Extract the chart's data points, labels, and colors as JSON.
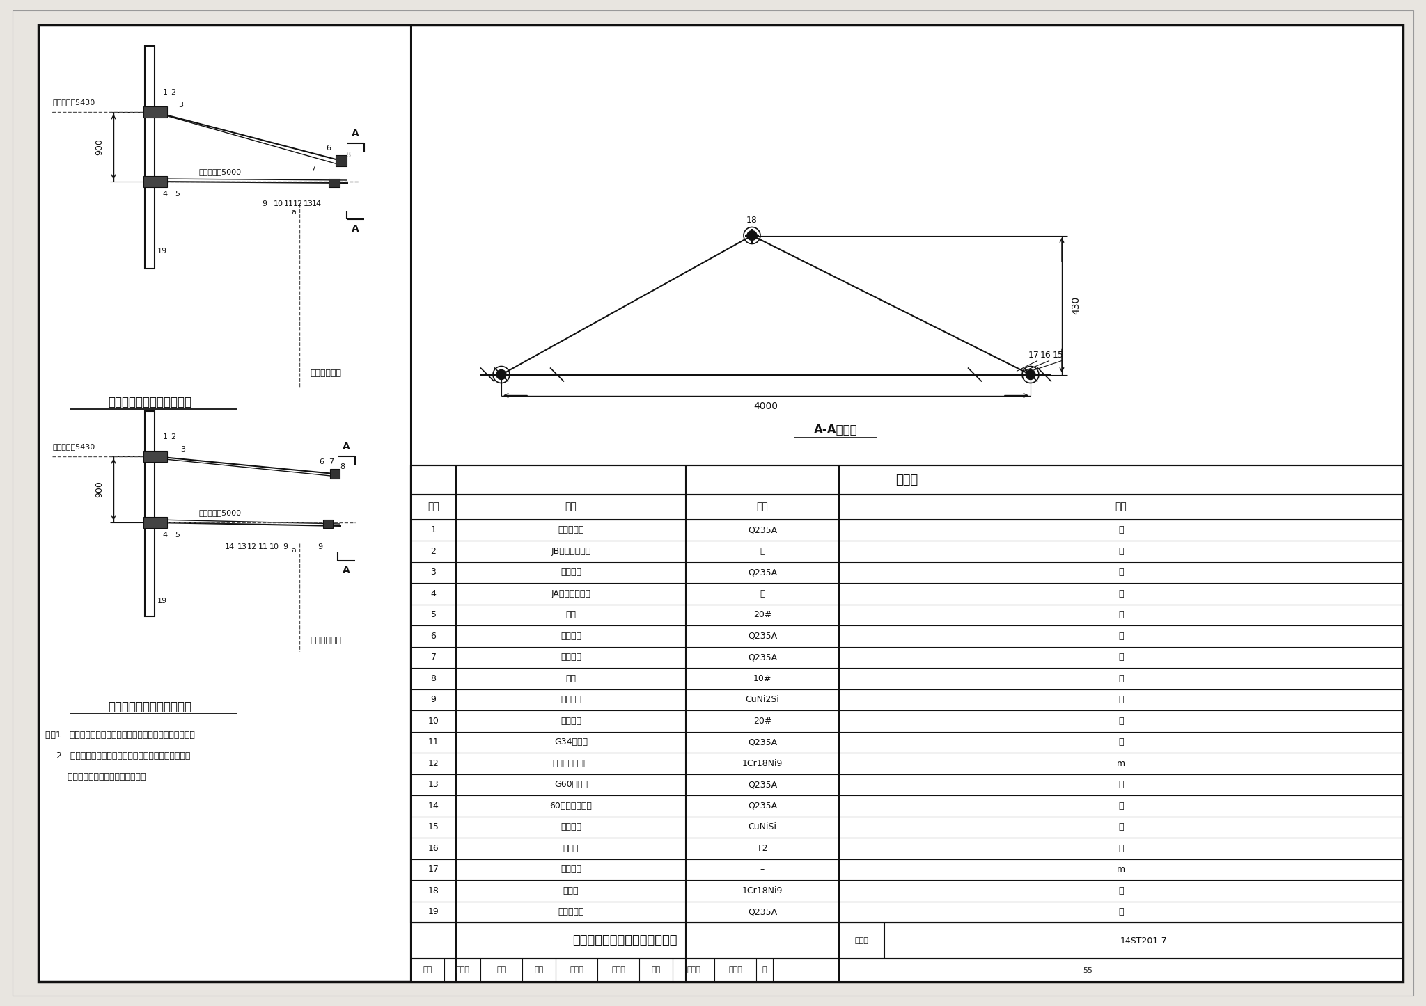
{
  "title": "简单悬挂安装图（中间柱曲线）",
  "drawing_number": "14ST201-7",
  "page": "55",
  "table_title": "材料表",
  "section_title": "A-A剖面图",
  "table_headers": [
    "序号",
    "名称",
    "材料",
    "单位"
  ],
  "table_data": [
    [
      "1",
      "腕臂上底座",
      "Q235A",
      "套"
    ],
    [
      "2",
      "JB型棒式绝缘子",
      "瓷",
      "套"
    ],
    [
      "3",
      "异径斜撑",
      "Q235A",
      "个"
    ],
    [
      "4",
      "JA型棒式绝缘子",
      "瓷",
      "个"
    ],
    [
      "5",
      "腕臂",
      "20#",
      "件"
    ],
    [
      "6",
      "套管双耳",
      "Q235A",
      "套"
    ],
    [
      "7",
      "定位双环",
      "Q235A",
      "套"
    ],
    [
      "8",
      "管帽",
      "10#",
      "件"
    ],
    [
      "9",
      "定位线夹",
      "CuNi2Si",
      "套"
    ],
    [
      "10",
      "软定位器",
      "20#",
      "件"
    ],
    [
      "11",
      "G34定位环",
      "Q235A",
      "套"
    ],
    [
      "12",
      "不锈钢软态钢丝",
      "1Cr18Ni9",
      "m"
    ],
    [
      "13",
      "G60定位环",
      "Q235A",
      "套"
    ],
    [
      "14",
      "60型长定位立柱",
      "Q235A",
      "套"
    ],
    [
      "15",
      "吊索线夹",
      "CuNiSi",
      "套"
    ],
    [
      "16",
      "钳压管",
      "T2",
      "套"
    ],
    [
      "17",
      "青铜绞线",
      "–",
      "m"
    ],
    [
      "18",
      "心形环",
      "1Cr18Ni9",
      "件"
    ],
    [
      "19",
      "腕臂上底座",
      "Q235A",
      "套"
    ]
  ],
  "notes": [
    "注：1.  腕臂施工中注意，绝缘子的安装方向应符合设计要求。",
    "    2.  本图适用于圆锥形钢柱上安装，安装形式及材料型号",
    "        仅供参考，具体以施工图纸为准。"
  ],
  "label1": "简单悬挂曲内安装正立面图",
  "label2": "简单悬挂曲外安装正立面图",
  "dim_900": "900",
  "dim_5430": "至轨面连线5430",
  "dim_5000": "至轨面连线5000",
  "dim_4000": "4000",
  "dim_430": "430",
  "dim_18": "18",
  "shou_dian_gong": "受电弓中心线",
  "sig_row": "审核 葛义飞  高玲  校对 蔡志刚  蔡志刚  设计 叶雷绿  叶雷绿  页  55",
  "tujihao": "图集号"
}
